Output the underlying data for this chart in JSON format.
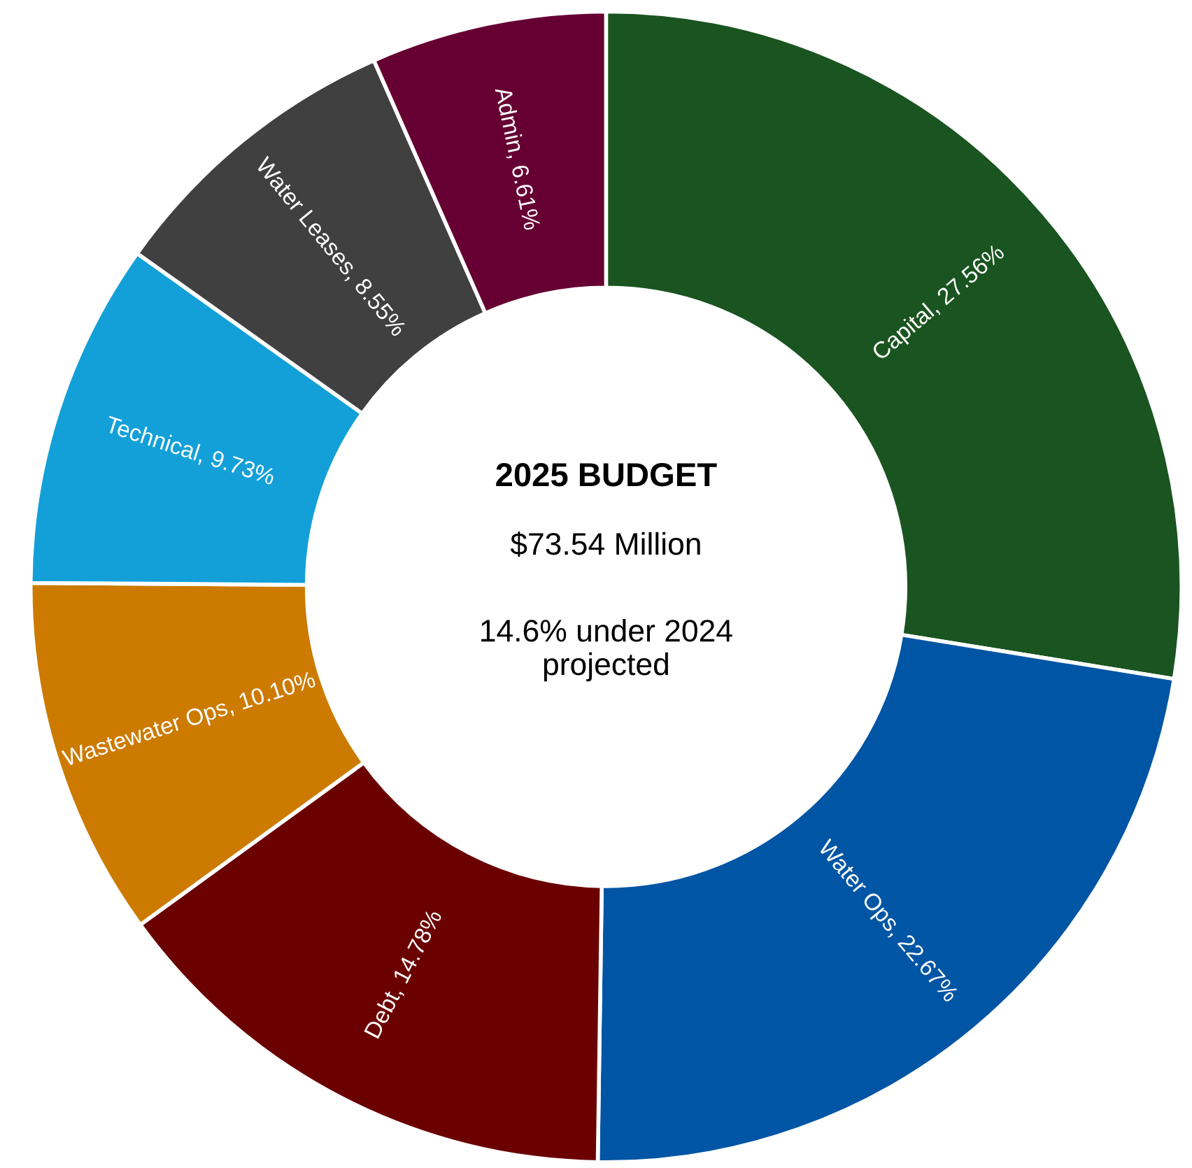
{
  "chart_data": {
    "type": "donut",
    "title": "2025 BUDGET",
    "subtitle": "$73.54 Million",
    "annotations": [
      "14.6% under 2024\nprojected"
    ],
    "categories": [
      "Capital",
      "Water Ops",
      "Debt",
      "Wastewater Ops",
      "Technical",
      "Water Leases",
      "Admin"
    ],
    "values": [
      27.56,
      22.67,
      14.78,
      10.1,
      9.73,
      8.55,
      6.61
    ],
    "colors": [
      "#1a5420",
      "#0055a4",
      "#6b0000",
      "#cc7a00",
      "#13a0d8",
      "#404040",
      "#660033"
    ],
    "value_labels": [
      "27.56%",
      "22.67%",
      "14.78%",
      "10.10%",
      "9.73%",
      "8.55%",
      "6.61%"
    ],
    "legend": false
  }
}
